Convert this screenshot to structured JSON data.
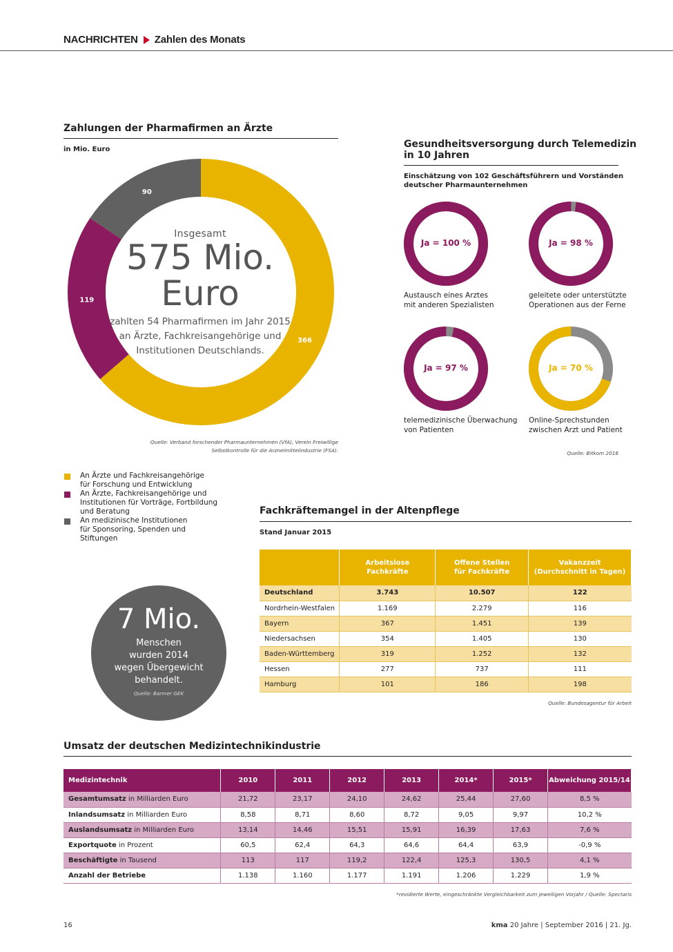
{
  "header": {
    "section": "NACHRICHTEN",
    "topic": "Zahlen des Monats"
  },
  "payments": {
    "title": "Zahlungen der Pharmafirmen an Ärzte",
    "unit": "in Mio. Euro",
    "center_top": "Insgesamt",
    "center_big_1": "575 Mio.",
    "center_big_2": "Euro",
    "center_desc_1": "zahlten 54 Pharmafirmen im Jahr 2015",
    "center_desc_2": "an Ärzte, Fachkreisangehörige und",
    "center_desc_3": "Institutionen Deutschlands.",
    "source_1": "Quelle: Verband forschender Pharmaunternehmen (VfA), Verein Freiwillige",
    "source_2": "Selbstkontrolle für die Arzneimittelindustrie (FSA).",
    "legend": [
      {
        "label": "An Ärzte und Fachkreisangehörige\nfür Forschung und Entwicklung",
        "color": "#e8b400"
      },
      {
        "label": "An Ärzte, Fachkreisangehörige und\nInstitutionen für Vorträge, Fortbildung\nund Beratung",
        "color": "#8b1a5f"
      },
      {
        "label": "An medizinische Institutionen\nfür Sponsoring, Spenden und\nStiftungen",
        "color": "#616161"
      }
    ]
  },
  "chart_data": {
    "type": "pie",
    "categories": [
      "An Ärzte und Fachkreisangehörige für Forschung und Entwicklung",
      "An Ärzte, Fachkreisangehörige und Institutionen für Vorträge, Fortbildung und Beratung",
      "An medizinische Institutionen für Sponsoring, Spenden und Stiftungen"
    ],
    "values": [
      366,
      119,
      90
    ],
    "labels": [
      "366",
      "119",
      "90"
    ],
    "colors": [
      "#e8b400",
      "#8b1a5f",
      "#616161"
    ],
    "title": "Zahlungen der Pharmafirmen an Ärzte"
  },
  "telemed": {
    "title_1": "Gesundheitsversorgung durch Telemedizin",
    "title_2": "in 10 Jahren",
    "sub_1": "Einschätzung von 102 Geschäftsführern und Vorständen",
    "sub_2": "deutscher Pharmaunternehmen",
    "source": "Quelle: Bitkom 2016",
    "rings": [
      {
        "value": 100,
        "label": "Ja = 100 %",
        "desc_1": "Austausch eines Arztes",
        "desc_2": "mit anderen Spezialisten",
        "color": "#8b1a5f",
        "label_color": "#8b1a5f"
      },
      {
        "value": 98,
        "label": "Ja = 98 %",
        "desc_1": "geleitete oder unterstützte",
        "desc_2": "Operationen aus der Ferne",
        "color": "#8b1a5f",
        "label_color": "#8b1a5f"
      },
      {
        "value": 97,
        "label": "Ja = 97 %",
        "desc_1": "telemedizinische Überwachung",
        "desc_2": "von Patienten",
        "color": "#8b1a5f",
        "label_color": "#8b1a5f"
      },
      {
        "value": 70,
        "label": "Ja = 70 %",
        "desc_1": "Online-Sprechstunden",
        "desc_2": "zwischen Arzt und Patient",
        "color": "#e8b400",
        "label_color": "#e8b400"
      }
    ],
    "rest_color": "#8a8a8a"
  },
  "obesity": {
    "big": "7 Mio.",
    "line_1": "Menschen",
    "line_2": "wurden 2014",
    "line_3": "wegen Übergewicht",
    "line_4": "behandelt.",
    "source": "Quelle: Barmer GEK"
  },
  "care": {
    "title": "Fachkräftemangel in der Altenpflege",
    "sub": "Stand Januar 2015",
    "headers": [
      "",
      "Arbeitslose\nFachkräfte",
      "Offene Stellen\nfür Fachkräfte",
      "Vakanzzeit\n(Durchschnitt in Tagen)"
    ],
    "rows": [
      [
        "Deutschland",
        "3.743",
        "10.507",
        "122"
      ],
      [
        "Nordrhein-Westfalen",
        "1.169",
        "2.279",
        "116"
      ],
      [
        "Bayern",
        "367",
        "1.451",
        "139"
      ],
      [
        "Niedersachsen",
        "354",
        "1.405",
        "130"
      ],
      [
        "Baden-Württemberg",
        "319",
        "1.252",
        "132"
      ],
      [
        "Hessen",
        "277",
        "737",
        "111"
      ],
      [
        "Hamburg",
        "101",
        "186",
        "198"
      ]
    ],
    "source": "Quelle: Bundesagentur für Arbeit"
  },
  "medtech": {
    "title": "Umsatz der deutschen Medizintechnikindustrie",
    "headers": [
      "Medizintechnik",
      "2010",
      "2011",
      "2012",
      "2013",
      "2014*",
      "2015*",
      "Abweichung 2015/14"
    ],
    "rows": [
      {
        "bold": "Gesamtumsatz",
        "rest": " in Milliarden Euro",
        "values": [
          "21,72",
          "23,17",
          "24,10",
          "24,62",
          "25,44",
          "27,60",
          "8,5 %"
        ]
      },
      {
        "bold": "Inlandsumsatz",
        "rest": " in Milliarden Euro",
        "values": [
          "8,58",
          "8,71",
          "8,60",
          "8,72",
          "9,05",
          "9,97",
          "10,2 %"
        ]
      },
      {
        "bold": "Auslandsumsatz",
        "rest": " in Milliarden Euro",
        "values": [
          "13,14",
          "14,46",
          "15,51",
          "15,91",
          "16,39",
          "17,63",
          "7,6 %"
        ]
      },
      {
        "bold": "Exportquote",
        "rest": " in Prozent",
        "values": [
          "60,5",
          "62,4",
          "64,3",
          "64,6",
          "64,4",
          "63,9",
          "-0,9 %"
        ]
      },
      {
        "bold": "Beschäftigte",
        "rest": " in Tausend",
        "values": [
          "113",
          "117",
          "119,2",
          "122,4",
          "125,3",
          "130,5",
          "4,1 %"
        ]
      },
      {
        "bold": "Anzahl der Betriebe",
        "rest": "",
        "values": [
          "1.138",
          "1.160",
          "1.177",
          "1.191",
          "1.206",
          "1.229",
          "1,9 %"
        ]
      }
    ],
    "note": "*revidierte Werte, eingeschränkte Vergleichbarkeit zum jeweiligen Vorjahr / Quelle: Spectaris"
  },
  "footer": {
    "page": "16",
    "brand": "kma",
    "text": "20 Jahre  |  September 2016  |  21. Jg."
  }
}
